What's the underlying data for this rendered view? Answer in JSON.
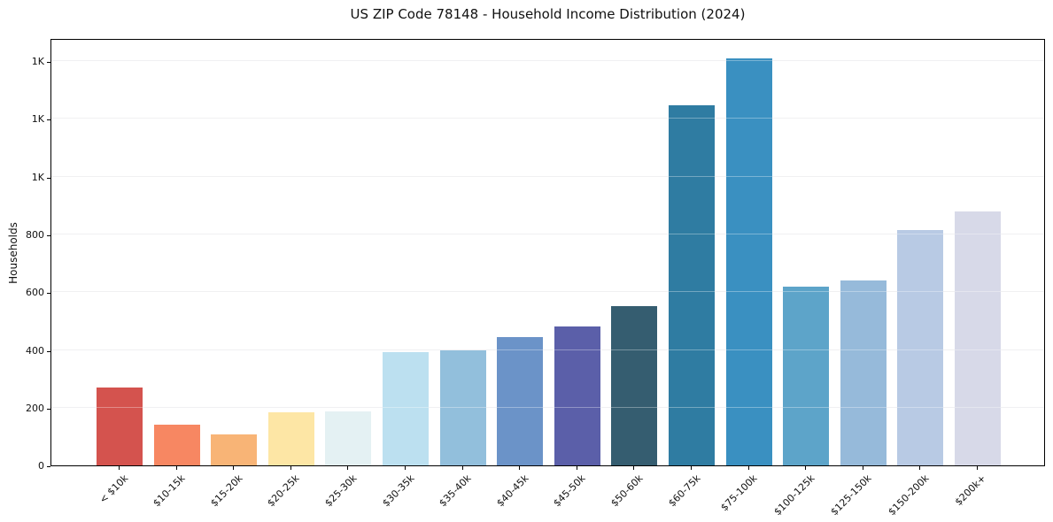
{
  "chart_data": {
    "type": "bar",
    "title": "US ZIP Code 78148 - Household Income Distribution (2024)",
    "xlabel": "",
    "ylabel": "Households",
    "categories": [
      "< $10k",
      "$10-15k",
      "$15-20k",
      "$20-25k",
      "$25-30k",
      "$30-35k",
      "$35-40k",
      "$40-45k",
      "$45-50k",
      "$50-60k",
      "$60-75k",
      "$75-100k",
      "$100-125k",
      "$125-150k",
      "$150-200k",
      "$200k+"
    ],
    "values": [
      270,
      141,
      107,
      184,
      187,
      393,
      397,
      445,
      482,
      553,
      1247,
      1409,
      619,
      641,
      815,
      881
    ],
    "bar_colors": [
      "#d4534e",
      "#f78762",
      "#f8b476",
      "#fde6a5",
      "#e4f1f3",
      "#bce0f0",
      "#92bfdc",
      "#6b93c8",
      "#5b5fa9",
      "#355d70",
      "#2f7ca2",
      "#3a90c1",
      "#5da4c9",
      "#96bada",
      "#b8cae4",
      "#d7d9e8"
    ],
    "ylim": [
      0,
      1480
    ],
    "yticks": [
      0,
      200,
      400,
      600,
      800,
      1000,
      1200,
      1400
    ],
    "ytick_labels": [
      "0",
      "200",
      "400",
      "600",
      "800",
      "1K",
      "1K",
      "1K"
    ],
    "grid": "horizontal",
    "legend": "none",
    "background_color": "#ffffff",
    "spine_color": "#000000",
    "grid_color": "#e9e9ec",
    "text_color": "#111111"
  }
}
